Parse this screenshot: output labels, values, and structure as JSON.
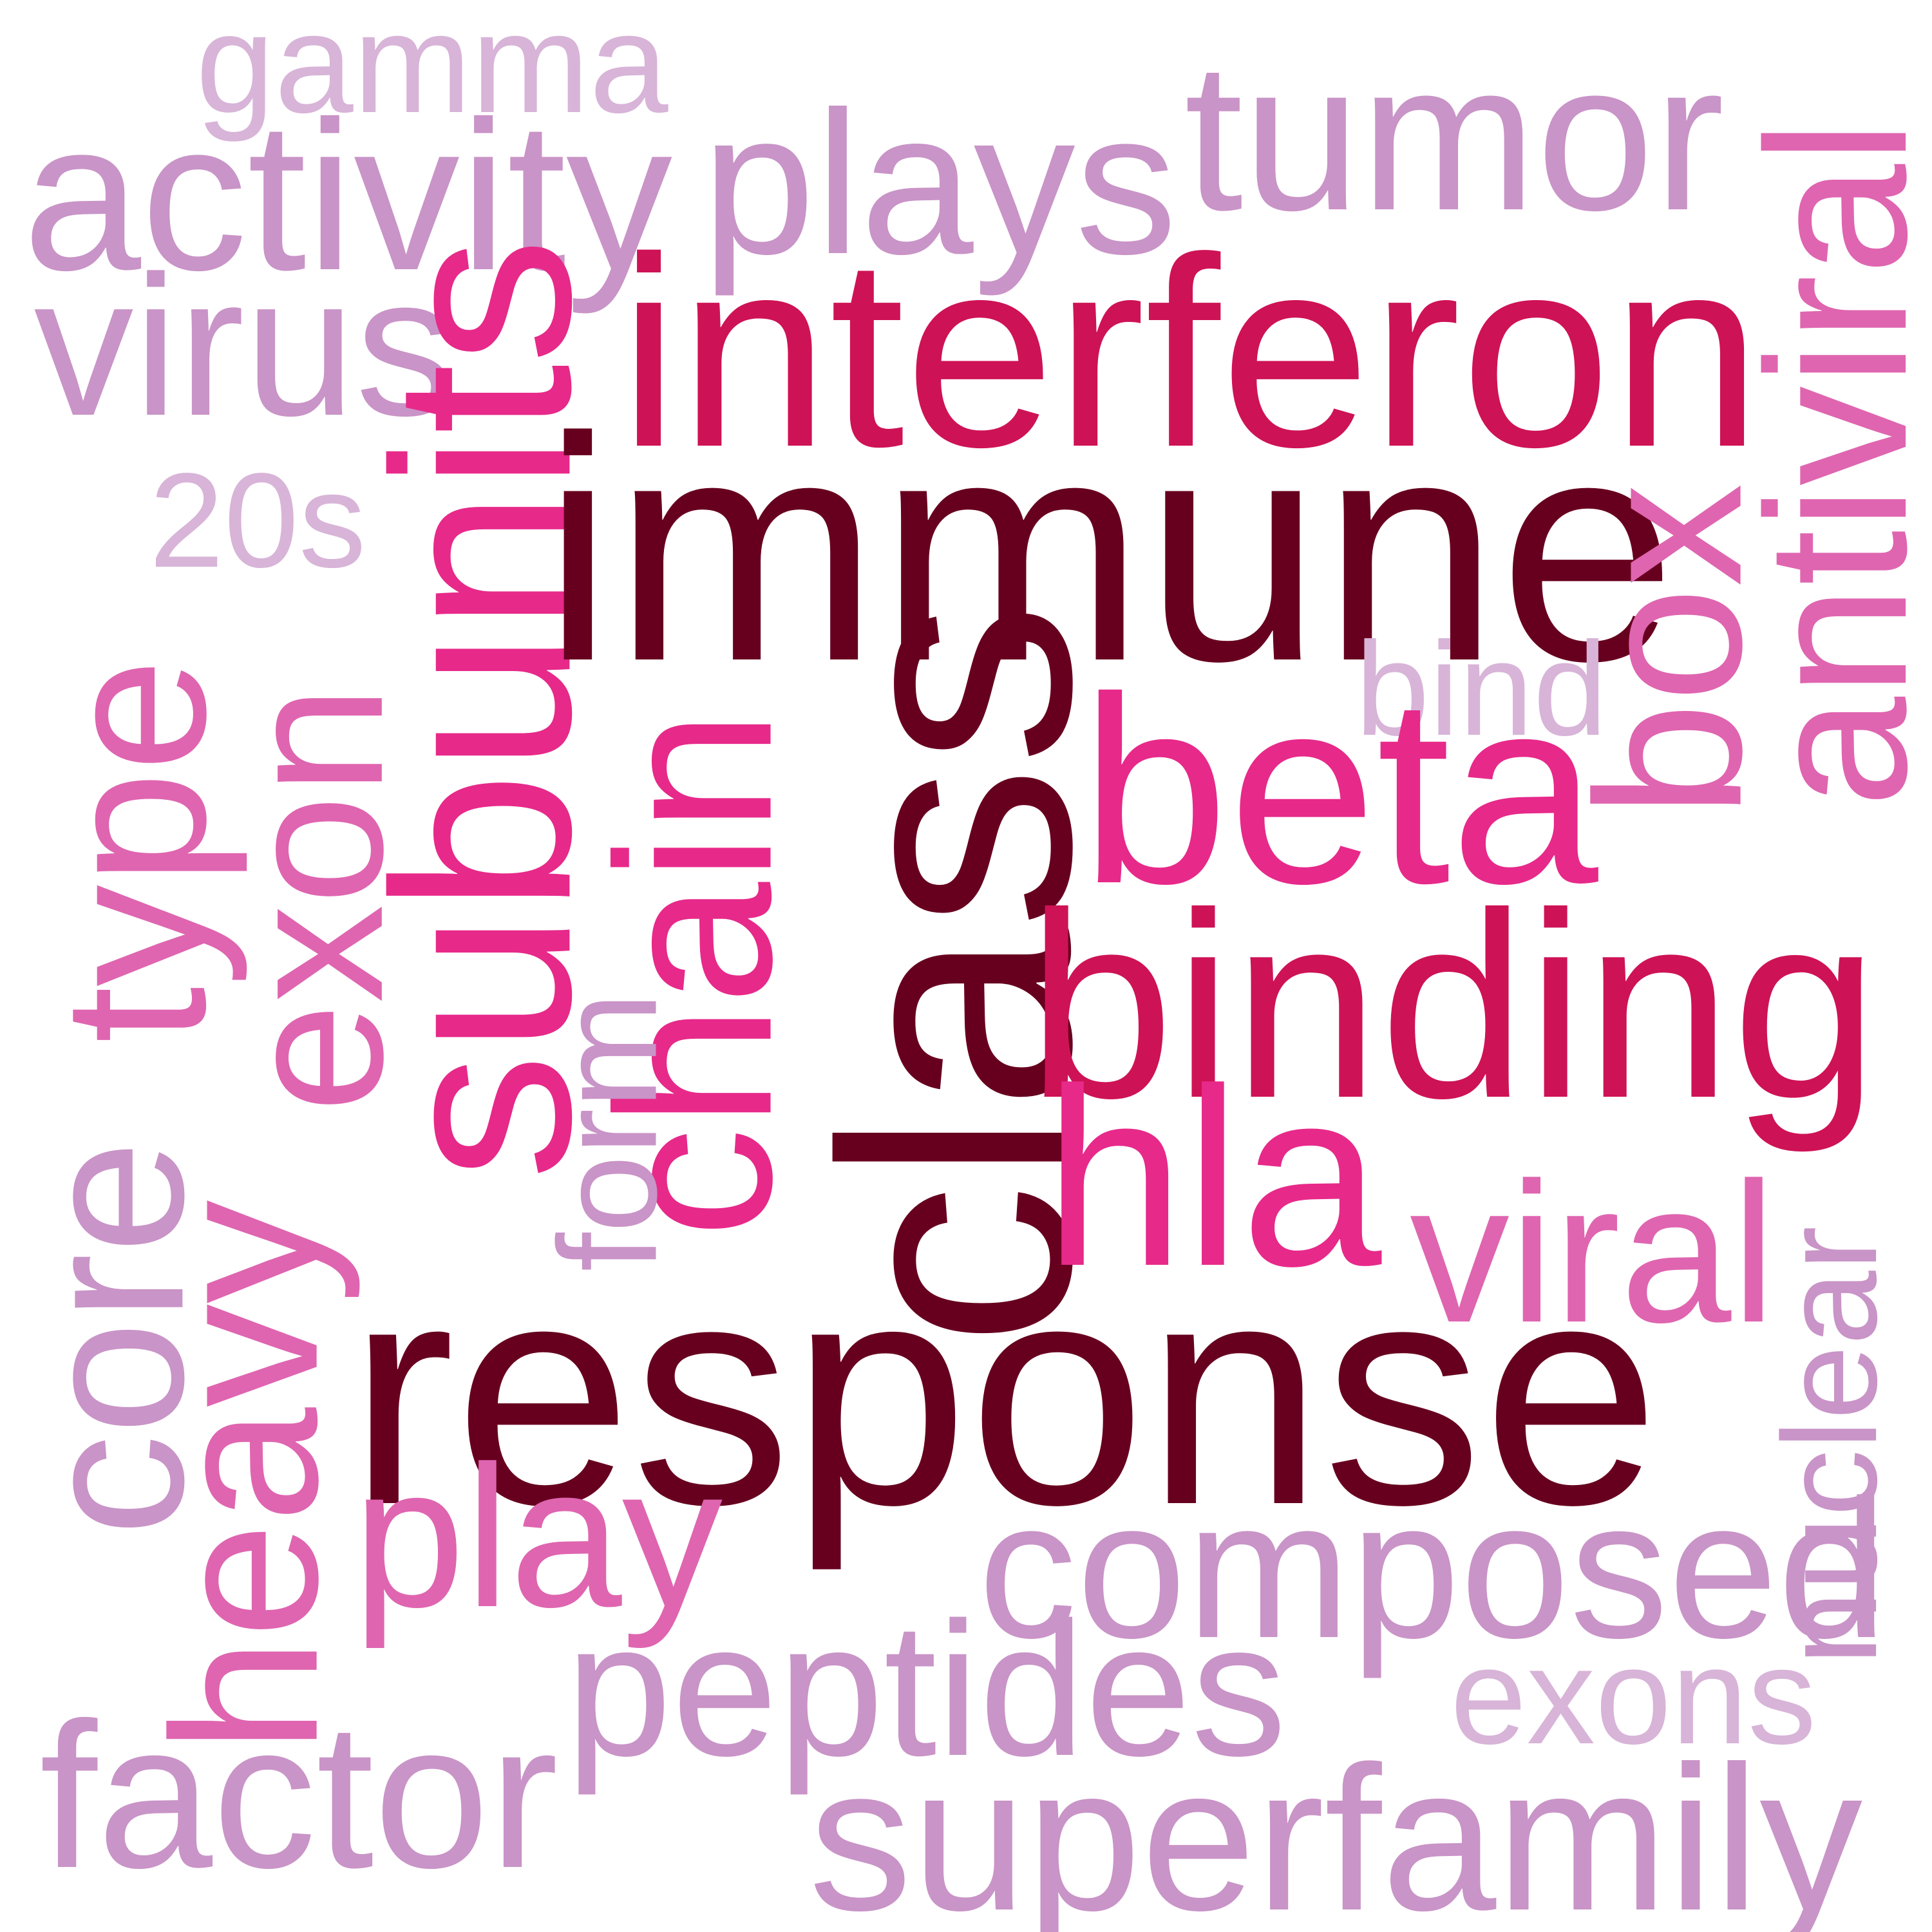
{
  "words": [
    {
      "text": "gamma",
      "color": "#d8b4d8",
      "weight": 3
    },
    {
      "text": "activity",
      "color": "#c994c7",
      "weight": 4
    },
    {
      "text": "plays",
      "color": "#c994c7",
      "weight": 4
    },
    {
      "text": "tumor",
      "color": "#c994c7",
      "weight": 4
    },
    {
      "text": "antiviral",
      "color": "#df65b0",
      "weight": 4
    },
    {
      "text": "virus",
      "color": "#c994c7",
      "weight": 4
    },
    {
      "text": "interferon",
      "color": "#ce1256",
      "weight": 6
    },
    {
      "text": "subunits",
      "color": "#e7298a",
      "weight": 5
    },
    {
      "text": "20s",
      "color": "#d8b4d8",
      "weight": 2
    },
    {
      "text": "immune",
      "color": "#67001f",
      "weight": 7
    },
    {
      "text": "bind",
      "color": "#d8b4d8",
      "weight": 2
    },
    {
      "text": "box",
      "color": "#df65b0",
      "weight": 4
    },
    {
      "text": "type",
      "color": "#df65b0",
      "weight": 4
    },
    {
      "text": "exon",
      "color": "#df65b0",
      "weight": 4
    },
    {
      "text": "chain",
      "color": "#e7298a",
      "weight": 4
    },
    {
      "text": "class",
      "color": "#67001f",
      "weight": 7
    },
    {
      "text": "beta",
      "color": "#e7298a",
      "weight": 5
    },
    {
      "text": "binding",
      "color": "#ce1256",
      "weight": 6
    },
    {
      "text": "form",
      "color": "#c994c7",
      "weight": 3
    },
    {
      "text": "core",
      "color": "#c994c7",
      "weight": 4
    },
    {
      "text": "heavy",
      "color": "#df65b0",
      "weight": 4
    },
    {
      "text": "hla",
      "color": "#e7298a",
      "weight": 5
    },
    {
      "text": "viral",
      "color": "#df65b0",
      "weight": 4
    },
    {
      "text": "nuclear",
      "color": "#c994c7",
      "weight": 3
    },
    {
      "text": "response",
      "color": "#67001f",
      "weight": 7
    },
    {
      "text": "play",
      "color": "#df65b0",
      "weight": 4
    },
    {
      "text": "composed",
      "color": "#c994c7",
      "weight": 4
    },
    {
      "text": "exons",
      "color": "#d8b4d8",
      "weight": 3
    },
    {
      "text": "peptides",
      "color": "#c994c7",
      "weight": 4
    },
    {
      "text": "factor",
      "color": "#c994c7",
      "weight": 4
    },
    {
      "text": "superfamily",
      "color": "#c994c7",
      "weight": 4
    }
  ]
}
